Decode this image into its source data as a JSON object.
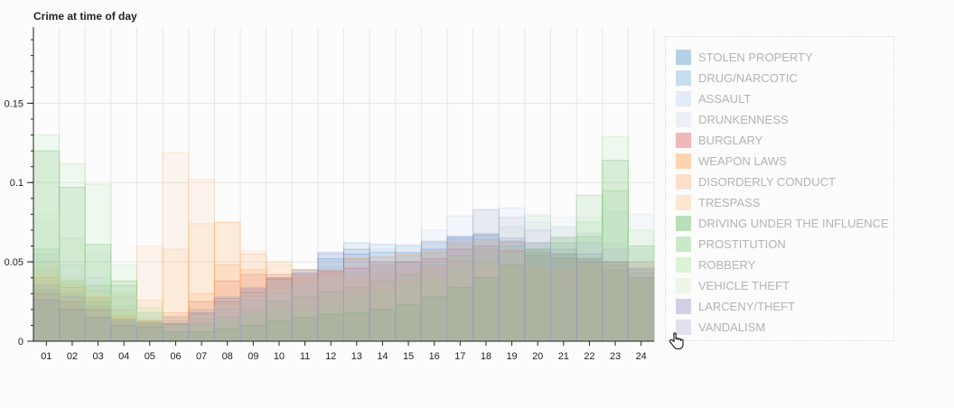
{
  "chart_data": {
    "type": "bar",
    "title": "Crime at time of day",
    "xlabel": "",
    "ylabel": "",
    "ylim": [
      0,
      0.198
    ],
    "yticks": [
      0,
      0.05,
      0.1,
      0.15
    ],
    "ytick_labels": [
      "0",
      "0.05",
      "0.1",
      "0.15"
    ],
    "categories": [
      "01",
      "02",
      "03",
      "04",
      "05",
      "06",
      "07",
      "08",
      "09",
      "10",
      "11",
      "12",
      "13",
      "14",
      "15",
      "16",
      "17",
      "18",
      "19",
      "20",
      "21",
      "22",
      "23",
      "24"
    ],
    "grid": true,
    "legend_position": "right",
    "series": [
      {
        "name": "STOLEN PROPERTY",
        "color": "#1f77b4",
        "values": [
          0.032,
          0.028,
          0.022,
          0.012,
          0.012,
          0.011,
          0.017,
          0.025,
          0.031,
          0.04,
          0.045,
          0.052,
          0.058,
          0.056,
          0.056,
          0.058,
          0.065,
          0.068,
          0.063,
          0.058,
          0.055,
          0.052,
          0.05,
          0.043
        ]
      },
      {
        "name": "DRUG/NARCOTIC",
        "color": "#5b9bd5",
        "values": [
          0.036,
          0.03,
          0.025,
          0.013,
          0.012,
          0.013,
          0.02,
          0.028,
          0.034,
          0.04,
          0.045,
          0.055,
          0.062,
          0.061,
          0.06,
          0.062,
          0.066,
          0.067,
          0.063,
          0.058,
          0.055,
          0.052,
          0.048,
          0.045
        ]
      },
      {
        "name": "ASSAULT",
        "color": "#aec7e8",
        "values": [
          0.055,
          0.048,
          0.04,
          0.022,
          0.015,
          0.016,
          0.02,
          0.027,
          0.033,
          0.04,
          0.043,
          0.047,
          0.055,
          0.058,
          0.061,
          0.07,
          0.079,
          0.083,
          0.084,
          0.079,
          0.072,
          0.068,
          0.062,
          0.058
        ]
      },
      {
        "name": "DRUNKENNESS",
        "color": "#c6d6ea",
        "values": [
          0.075,
          0.065,
          0.055,
          0.028,
          0.014,
          0.01,
          0.012,
          0.018,
          0.022,
          0.025,
          0.028,
          0.032,
          0.038,
          0.042,
          0.048,
          0.056,
          0.063,
          0.068,
          0.072,
          0.075,
          0.078,
          0.078,
          0.082,
          0.08
        ]
      },
      {
        "name": "BURGLARY",
        "color": "#d62728",
        "values": [
          0.03,
          0.025,
          0.02,
          0.014,
          0.013,
          0.015,
          0.025,
          0.038,
          0.042,
          0.042,
          0.042,
          0.044,
          0.046,
          0.048,
          0.05,
          0.052,
          0.058,
          0.06,
          0.057,
          0.054,
          0.052,
          0.05,
          0.045,
          0.04
        ]
      },
      {
        "name": "WEAPON LAWS",
        "color": "#ff7f0e",
        "values": [
          0.04,
          0.034,
          0.027,
          0.016,
          0.012,
          0.018,
          0.03,
          0.048,
          0.045,
          0.04,
          0.04,
          0.045,
          0.052,
          0.053,
          0.055,
          0.056,
          0.062,
          0.064,
          0.062,
          0.058,
          0.055,
          0.052,
          0.05,
          0.045
        ]
      },
      {
        "name": "DISORDERLY CONDUCT",
        "color": "#ffa366",
        "values": [
          0.045,
          0.036,
          0.028,
          0.02,
          0.026,
          0.058,
          0.074,
          0.075,
          0.055,
          0.05,
          0.045,
          0.043,
          0.04,
          0.042,
          0.044,
          0.046,
          0.05,
          0.05,
          0.048,
          0.046,
          0.045,
          0.046,
          0.05,
          0.05
        ]
      },
      {
        "name": "TRESPASS",
        "color": "#ffbb78",
        "values": [
          0.05,
          0.04,
          0.032,
          0.03,
          0.06,
          0.119,
          0.102,
          0.075,
          0.057,
          0.048,
          0.045,
          0.043,
          0.04,
          0.038,
          0.038,
          0.04,
          0.043,
          0.045,
          0.046,
          0.045,
          0.044,
          0.045,
          0.048,
          0.05
        ]
      },
      {
        "name": "DRIVING UNDER THE INFLUENCE",
        "color": "#2ca02c",
        "values": [
          0.12,
          0.097,
          0.061,
          0.038,
          0.011,
          0.006,
          0.006,
          0.008,
          0.01,
          0.013,
          0.015,
          0.017,
          0.018,
          0.02,
          0.023,
          0.028,
          0.034,
          0.04,
          0.048,
          0.056,
          0.062,
          0.066,
          0.114,
          0.06
        ]
      },
      {
        "name": "PROSTITUTION",
        "color": "#5fbf5f",
        "values": [
          0.058,
          0.038,
          0.035,
          0.035,
          0.018,
          0.011,
          0.011,
          0.015,
          0.02,
          0.025,
          0.028,
          0.031,
          0.034,
          0.038,
          0.042,
          0.048,
          0.054,
          0.058,
          0.06,
          0.062,
          0.065,
          0.092,
          0.095,
          0.04
        ]
      },
      {
        "name": "ROBBERY",
        "color": "#98df8a",
        "values": [
          0.13,
          0.112,
          0.099,
          0.048,
          0.021,
          0.01,
          0.009,
          0.013,
          0.016,
          0.018,
          0.02,
          0.024,
          0.028,
          0.031,
          0.035,
          0.04,
          0.045,
          0.05,
          0.055,
          0.06,
          0.065,
          0.075,
          0.129,
          0.07
        ]
      },
      {
        "name": "VEHICLE THEFT",
        "color": "#c7e9c0",
        "values": [
          0.08,
          0.065,
          0.05,
          0.03,
          0.018,
          0.014,
          0.016,
          0.022,
          0.027,
          0.032,
          0.036,
          0.04,
          0.045,
          0.048,
          0.052,
          0.056,
          0.062,
          0.068,
          0.072,
          0.08,
          0.072,
          0.066,
          0.062,
          0.058
        ]
      },
      {
        "name": "LARCENY/THEFT",
        "color": "#7570b3",
        "values": [
          0.026,
          0.02,
          0.015,
          0.01,
          0.009,
          0.011,
          0.018,
          0.027,
          0.033,
          0.039,
          0.043,
          0.056,
          0.055,
          0.05,
          0.05,
          0.063,
          0.066,
          0.067,
          0.065,
          0.062,
          0.058,
          0.055,
          0.05,
          0.046
        ]
      },
      {
        "name": "VANDALISM",
        "color": "#aaa5cc",
        "values": [
          0.035,
          0.028,
          0.02,
          0.013,
          0.01,
          0.01,
          0.014,
          0.02,
          0.026,
          0.031,
          0.036,
          0.042,
          0.046,
          0.05,
          0.054,
          0.058,
          0.064,
          0.083,
          0.078,
          0.07,
          0.066,
          0.062,
          0.058,
          0.05
        ]
      }
    ]
  }
}
